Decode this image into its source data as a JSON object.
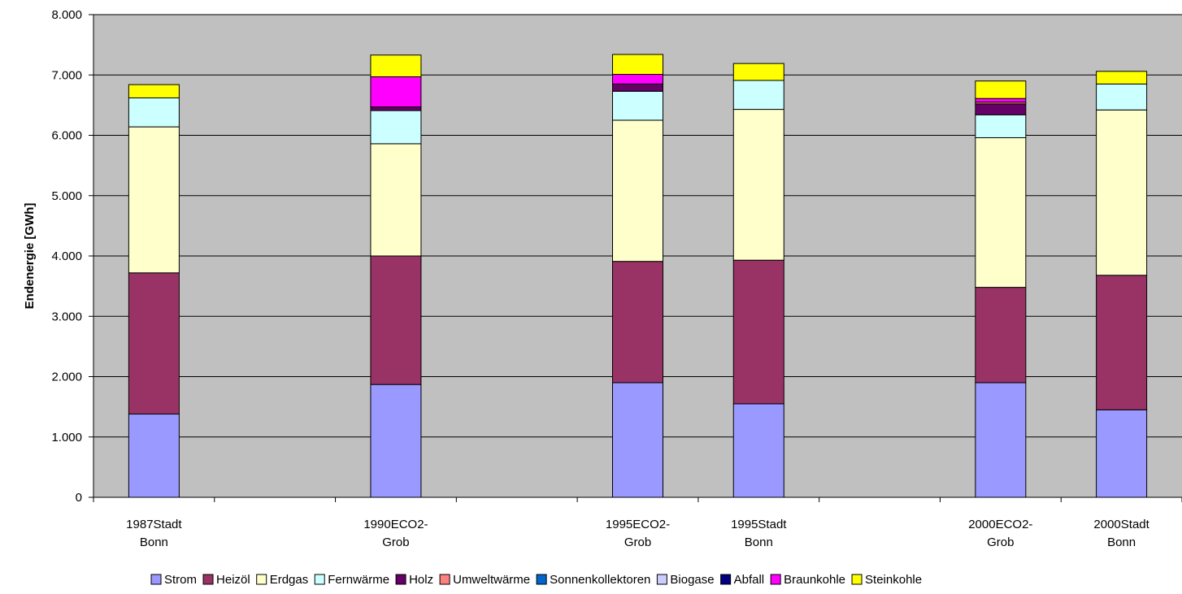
{
  "chart_data": {
    "type": "bar",
    "stacked": true,
    "ylabel": "Endenergie [GWh]",
    "ylim": [
      0,
      8000
    ],
    "yticks": [
      "0",
      "1.000",
      "2.000",
      "3.000",
      "4.000",
      "5.000",
      "6.000",
      "7.000",
      "8.000"
    ],
    "ytick_values": [
      0,
      1000,
      2000,
      3000,
      4000,
      5000,
      6000,
      7000,
      8000
    ],
    "grid": true,
    "legend_position": "bottom",
    "categories": [
      [
        "1987Stadt",
        "Bonn"
      ],
      [
        "",
        ""
      ],
      [
        "1990ECO2-",
        "Grob"
      ],
      [
        "",
        ""
      ],
      [
        "1995ECO2-",
        "Grob"
      ],
      [
        "1995Stadt",
        "Bonn"
      ],
      [
        "",
        ""
      ],
      [
        "2000ECO2-",
        "Grob"
      ],
      [
        "2000Stadt",
        "Bonn"
      ]
    ],
    "series": [
      {
        "name": "Strom",
        "color": "#9999ff",
        "values": [
          1380,
          null,
          1870,
          null,
          1900,
          1550,
          null,
          1900,
          1450
        ]
      },
      {
        "name": "Heizöl",
        "color": "#993366",
        "values": [
          2340,
          null,
          2130,
          null,
          2010,
          2380,
          null,
          1580,
          2230
        ]
      },
      {
        "name": "Erdgas",
        "color": "#ffffcc",
        "values": [
          2420,
          null,
          1860,
          null,
          2340,
          2500,
          null,
          2480,
          2740
        ]
      },
      {
        "name": "Fernwärme",
        "color": "#ccffff",
        "values": [
          480,
          null,
          550,
          null,
          480,
          480,
          null,
          380,
          430
        ]
      },
      {
        "name": "Holz",
        "color": "#660066",
        "values": [
          0,
          null,
          60,
          null,
          120,
          0,
          null,
          180,
          0
        ]
      },
      {
        "name": "Umweltwärme",
        "color": "#ff8080",
        "values": [
          0,
          null,
          0,
          null,
          0,
          0,
          null,
          30,
          0
        ]
      },
      {
        "name": "Sonnenkollektoren",
        "color": "#0066cc",
        "values": [
          0,
          null,
          0,
          null,
          0,
          0,
          null,
          0,
          0
        ]
      },
      {
        "name": "Biogase",
        "color": "#ccccff",
        "values": [
          0,
          null,
          0,
          null,
          0,
          0,
          null,
          0,
          0
        ]
      },
      {
        "name": "Abfall",
        "color": "#000080",
        "values": [
          0,
          null,
          0,
          null,
          0,
          0,
          null,
          0,
          0
        ]
      },
      {
        "name": "Braunkohle",
        "color": "#ff00ff",
        "values": [
          0,
          null,
          500,
          null,
          160,
          0,
          null,
          60,
          0
        ]
      },
      {
        "name": "Steinkohle",
        "color": "#ffff00",
        "values": [
          220,
          null,
          360,
          null,
          330,
          280,
          null,
          290,
          210
        ]
      }
    ]
  }
}
